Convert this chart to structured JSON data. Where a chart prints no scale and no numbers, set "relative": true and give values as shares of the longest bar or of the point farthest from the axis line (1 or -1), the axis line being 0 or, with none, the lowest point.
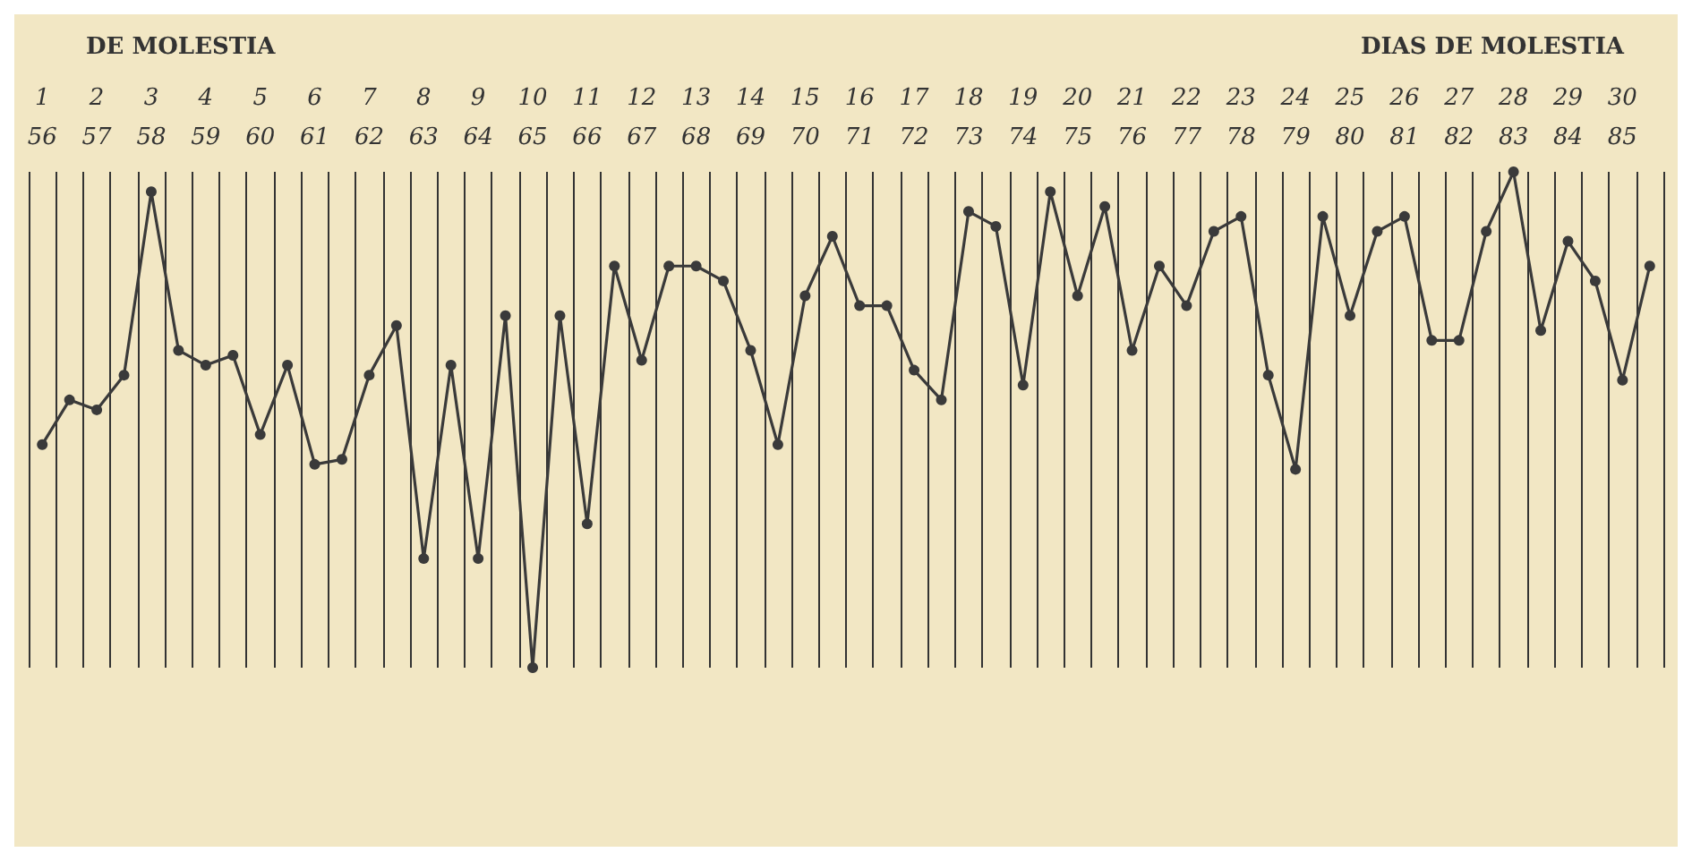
{
  "chart_data": {
    "type": "line",
    "relative": true,
    "annotations": [
      "DE MOLESTIA",
      "DIAS DE MOLESTIA"
    ],
    "categories": [
      "1\n56",
      null,
      "2\n57",
      null,
      "3\n58",
      null,
      "4\n59",
      null,
      "5\n60",
      null,
      "6\n61",
      null,
      "7\n62",
      null,
      "8\n63",
      null,
      "9\n64",
      null,
      "10\n65",
      null,
      "11\n66",
      null,
      "12\n67",
      null,
      "13\n68",
      null,
      "14\n69",
      null,
      "15\n70",
      null,
      "16\n71",
      null,
      "17\n72",
      null,
      "18\n73",
      null,
      "19\n74",
      null,
      "20\n75",
      null,
      "21\n76",
      null,
      "22\n77",
      null,
      "23\n78",
      null,
      "24\n79",
      null,
      "25\n80",
      null,
      "26\n81",
      null,
      "27\n82",
      null,
      "28\n83",
      null,
      "29\n84",
      null,
      "30\n85",
      null
    ],
    "series": [
      {
        "color": "#3a3a3a",
        "values": [
          0.45,
          0.54,
          0.52,
          0.59,
          0.96,
          0.64,
          0.61,
          0.63,
          0.47,
          0.61,
          0.41,
          0.42,
          0.59,
          0.69,
          0.22,
          0.61,
          0.22,
          0.71,
          0,
          0.71,
          0.29,
          0.81,
          0.62,
          0.81,
          0.81,
          0.78,
          0.64,
          0.45,
          0.75,
          0.87,
          0.73,
          0.73,
          0.6,
          0.54,
          0.92,
          0.89,
          0.57,
          0.96,
          0.75,
          0.93,
          0.64,
          0.81,
          0.73,
          0.88,
          0.91,
          0.59,
          0.4,
          0.91,
          0.71,
          0.88,
          0.91,
          0.66,
          0.66,
          0.88,
          1,
          0.68,
          0.86,
          0.78,
          0.58,
          0.81
        ]
      }
    ],
    "grid": "x",
    "marker": "circle",
    "line_style": "solid"
  }
}
